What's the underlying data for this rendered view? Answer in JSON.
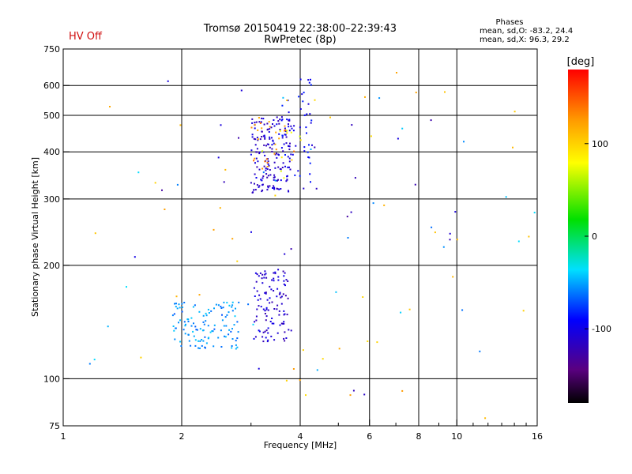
{
  "status_label": "HV Off",
  "colors": {
    "status": "#d01010",
    "axis": "#000000",
    "background": "#ffffff"
  },
  "phases_box": {
    "title": "Phases",
    "line_o": "mean, sd,O: -83.2, 24.4",
    "line_x": "mean, sd,X:  96.3, 29.2"
  },
  "chart_data": {
    "type": "scatter",
    "title": "Tromsø 20150419 22:38:00–22:39:43",
    "subtitle": "RwPretec (8p)",
    "xlabel": "Frequency [MHz]",
    "ylabel": "Stationary phase Virtual Height [km]",
    "xscale": "log",
    "yscale": "log",
    "xlim": [
      1,
      16
    ],
    "ylim": [
      75,
      750
    ],
    "grid": true,
    "x_ticks": [
      1,
      2,
      4,
      6,
      8,
      10,
      16
    ],
    "x_minor_ticks": [
      3,
      5,
      7,
      9,
      11,
      12,
      13,
      14,
      15
    ],
    "y_ticks": [
      75,
      100,
      200,
      300,
      400,
      500,
      600,
      750
    ],
    "colorbar": {
      "label": "[deg]",
      "range": [
        -180,
        180
      ],
      "ticks": [
        100,
        0,
        -100
      ],
      "colormap": "rainbow"
    },
    "point_groups": [
      {
        "name": "",
        "phase": -110,
        "f_range": [
          3.0,
          3.8
        ],
        "h_range": [
          310,
          500
        ],
        "count": 170
      },
      {
        "name": "",
        "phase": -95,
        "f_range": [
          3.6,
          4.3
        ],
        "h_range": [
          330,
          640
        ],
        "count": 50
      },
      {
        "name": "",
        "phase": 130,
        "f_range": [
          3.0,
          4.0
        ],
        "h_range": [
          360,
          500
        ],
        "count": 25
      },
      {
        "name": "",
        "phase": 80,
        "f_range": [
          3.2,
          4.1
        ],
        "h_range": [
          340,
          480
        ],
        "count": 10
      },
      {
        "name": "",
        "phase": -55,
        "f_range": [
          1.9,
          2.8
        ],
        "h_range": [
          120,
          160
        ],
        "count": 120
      },
      {
        "name": "",
        "phase": -110,
        "f_range": [
          3.05,
          3.75
        ],
        "h_range": [
          125,
          195
        ],
        "count": 110
      },
      {
        "name": "",
        "phase": 110,
        "f_range": [
          1.2,
          16
        ],
        "h_range": [
          78,
          650
        ],
        "count": 45
      },
      {
        "name": "",
        "phase": -50,
        "f_range": [
          1.1,
          16
        ],
        "h_range": [
          95,
          620
        ],
        "count": 28
      },
      {
        "name": "",
        "phase": -115,
        "f_range": [
          1.5,
          16
        ],
        "h_range": [
          85,
          620
        ],
        "count": 30
      }
    ]
  }
}
